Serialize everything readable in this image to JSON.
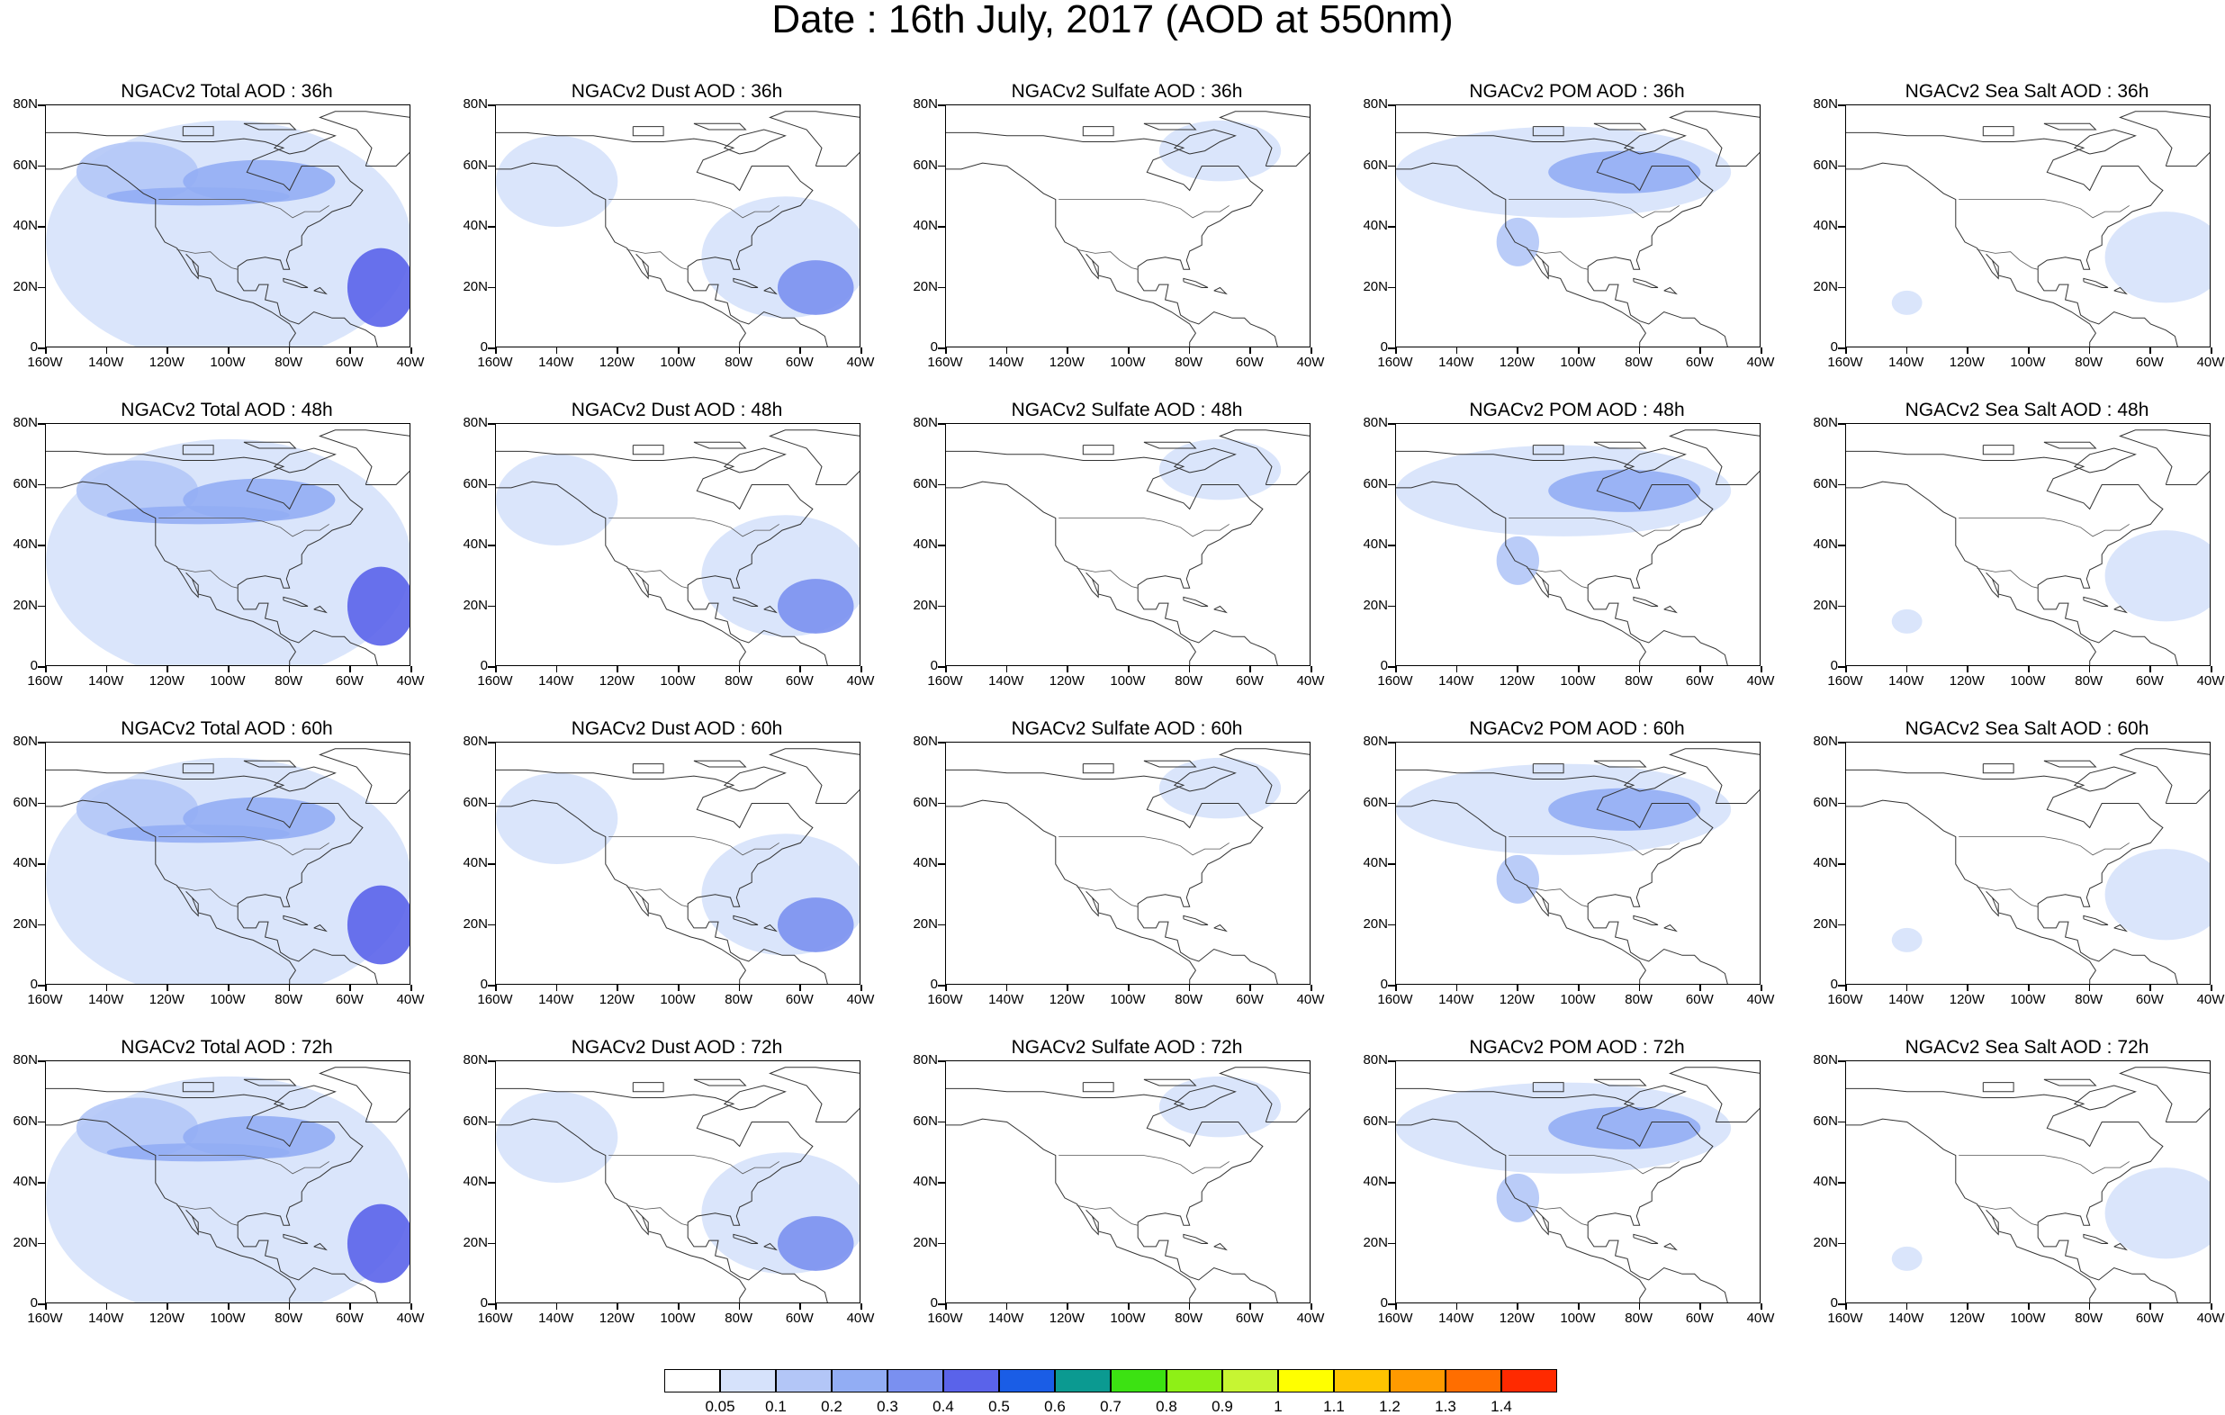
{
  "title": "Date : 16th July, 2017 (AOD at 550nm)",
  "lat_labels": [
    "80N",
    "60N",
    "40N",
    "20N",
    "0"
  ],
  "lon_labels": [
    "160W",
    "140W",
    "120W",
    "100W",
    "80W",
    "60W",
    "40W"
  ],
  "panels": [
    {
      "title": "NGACv2 Total AOD : 36h",
      "field": "total",
      "hour": 36
    },
    {
      "title": "NGACv2 Dust AOD : 36h",
      "field": "dust",
      "hour": 36
    },
    {
      "title": "NGACv2 Sulfate AOD : 36h",
      "field": "sulfate",
      "hour": 36
    },
    {
      "title": "NGACv2 POM AOD : 36h",
      "field": "pom",
      "hour": 36
    },
    {
      "title": "NGACv2 Sea Salt AOD : 36h",
      "field": "seasalt",
      "hour": 36
    },
    {
      "title": "NGACv2 Total AOD : 48h",
      "field": "total",
      "hour": 48
    },
    {
      "title": "NGACv2 Dust AOD : 48h",
      "field": "dust",
      "hour": 48
    },
    {
      "title": "NGACv2 Sulfate AOD : 48h",
      "field": "sulfate",
      "hour": 48
    },
    {
      "title": "NGACv2 POM AOD : 48h",
      "field": "pom",
      "hour": 48
    },
    {
      "title": "NGACv2 Sea Salt AOD : 48h",
      "field": "seasalt",
      "hour": 48
    },
    {
      "title": "NGACv2 Total AOD : 60h",
      "field": "total",
      "hour": 60
    },
    {
      "title": "NGACv2 Dust AOD : 60h",
      "field": "dust",
      "hour": 60
    },
    {
      "title": "NGACv2 Sulfate AOD : 60h",
      "field": "sulfate",
      "hour": 60
    },
    {
      "title": "NGACv2 POM AOD : 60h",
      "field": "pom",
      "hour": 60
    },
    {
      "title": "NGACv2 Sea Salt AOD : 60h",
      "field": "seasalt",
      "hour": 60
    },
    {
      "title": "NGACv2 Total AOD : 72h",
      "field": "total",
      "hour": 72
    },
    {
      "title": "NGACv2 Dust AOD : 72h",
      "field": "dust",
      "hour": 72
    },
    {
      "title": "NGACv2 Sulfate AOD : 72h",
      "field": "sulfate",
      "hour": 72
    },
    {
      "title": "NGACv2 POM AOD : 72h",
      "field": "pom",
      "hour": 72
    },
    {
      "title": "NGACv2 Sea Salt  AOD : 72h",
      "field": "seasalt",
      "hour": 72
    }
  ],
  "colorbar": {
    "labels": [
      "0.05",
      "0.1",
      "0.2",
      "0.3",
      "0.4",
      "0.5",
      "0.6",
      "0.7",
      "0.8",
      "0.9",
      "1",
      "1.1",
      "1.2",
      "1.3",
      "1.4"
    ],
    "colors": [
      "#ffffff",
      "#d6e2fb",
      "#b3c6f7",
      "#92adf4",
      "#7a90f0",
      "#5a63ea",
      "#1a5de6",
      "#0b9a91",
      "#3ce212",
      "#8ef016",
      "#c7f532",
      "#ffff00",
      "#ffc400",
      "#ff9a00",
      "#ff6e00",
      "#ff2a00"
    ]
  },
  "regions": {
    "total": [
      {
        "lon": -100,
        "lat": 35,
        "w": 120,
        "h": 80,
        "level": 1
      },
      {
        "lon": -130,
        "lat": 58,
        "w": 40,
        "h": 20,
        "level": 2
      },
      {
        "lon": -90,
        "lat": 55,
        "w": 50,
        "h": 14,
        "level": 3
      },
      {
        "lon": -50,
        "lat": 20,
        "w": 22,
        "h": 26,
        "level": 5
      },
      {
        "lon": -110,
        "lat": 50,
        "w": 60,
        "h": 6,
        "level": 3
      }
    ],
    "dust": [
      {
        "lon": -65,
        "lat": 30,
        "w": 55,
        "h": 40,
        "level": 1
      },
      {
        "lon": -55,
        "lat": 20,
        "w": 25,
        "h": 18,
        "level": 4
      },
      {
        "lon": -140,
        "lat": 55,
        "w": 40,
        "h": 30,
        "level": 1
      }
    ],
    "sulfate": [
      {
        "lon": -70,
        "lat": 65,
        "w": 40,
        "h": 20,
        "level": 1
      }
    ],
    "pom": [
      {
        "lon": -105,
        "lat": 58,
        "w": 110,
        "h": 30,
        "level": 1
      },
      {
        "lon": -85,
        "lat": 58,
        "w": 50,
        "h": 14,
        "level": 3
      },
      {
        "lon": -120,
        "lat": 35,
        "w": 14,
        "h": 16,
        "level": 2
      }
    ],
    "seasalt": [
      {
        "lon": -55,
        "lat": 30,
        "w": 40,
        "h": 30,
        "level": 1
      },
      {
        "lon": -140,
        "lat": 15,
        "w": 10,
        "h": 8,
        "level": 1
      }
    ]
  }
}
